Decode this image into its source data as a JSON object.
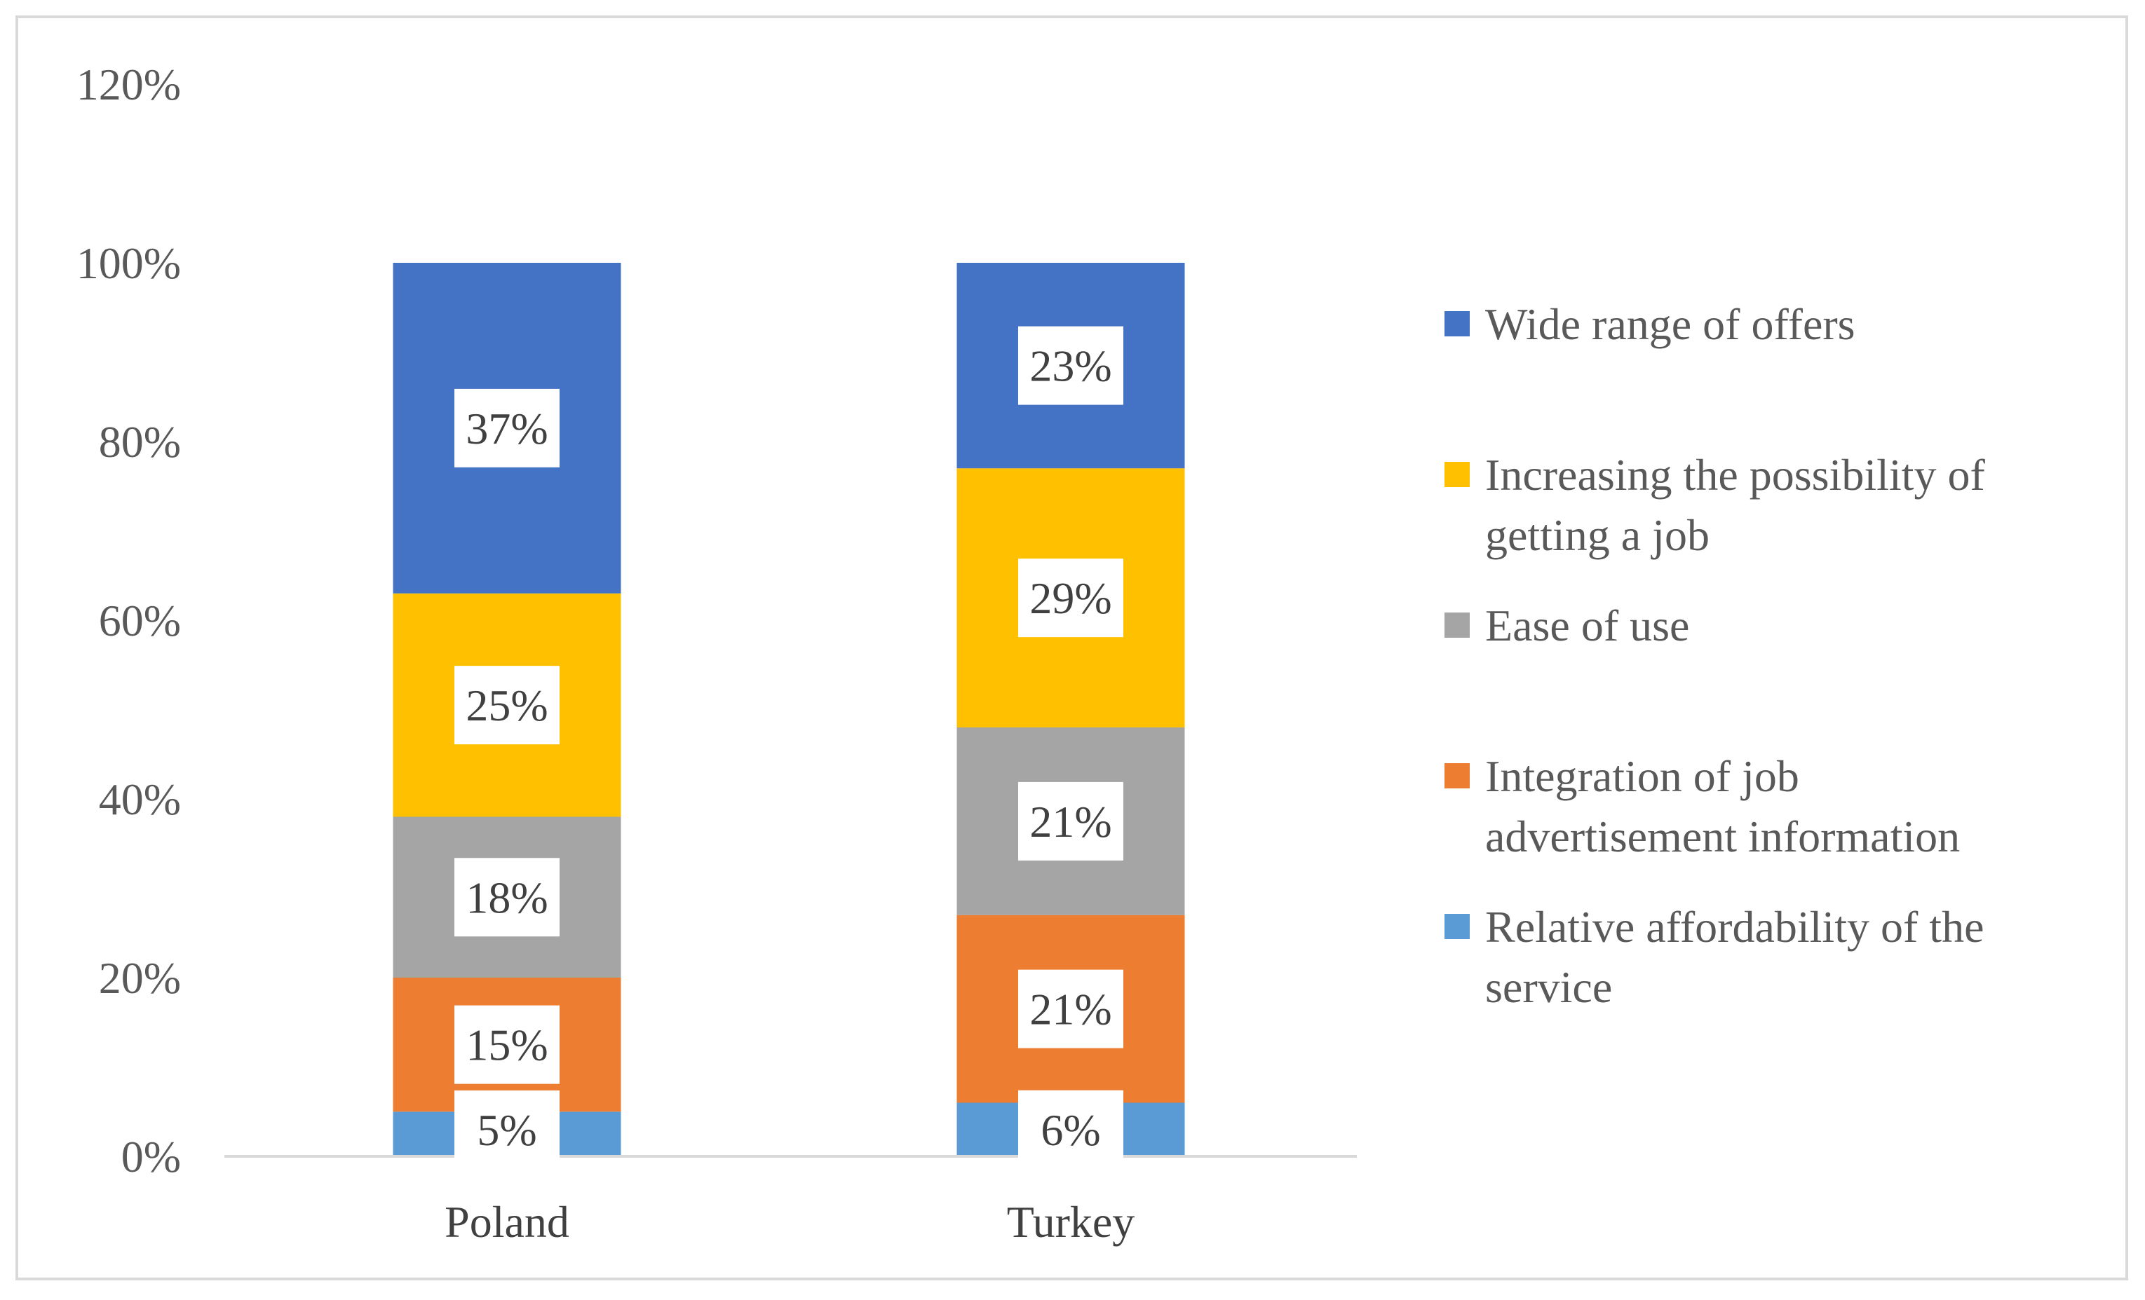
{
  "chart_data": {
    "type": "bar",
    "stacked": true,
    "title": "",
    "xlabel": "",
    "ylabel": "",
    "ylim": [
      0,
      1.2
    ],
    "yticks": [
      0,
      0.2,
      0.4,
      0.6,
      0.8,
      1.0,
      1.2
    ],
    "ytick_labels": [
      "0%",
      "20%",
      "40%",
      "60%",
      "80%",
      "100%",
      "120%"
    ],
    "categories": [
      "Poland",
      "Turkey"
    ],
    "series": [
      {
        "name": "Relative affordability of the service",
        "color": "#5b9bd5",
        "values": [
          0.05,
          0.06
        ],
        "labels": [
          "5%",
          "6%"
        ]
      },
      {
        "name": "Integration of job advertisement information",
        "color": "#ed7d31",
        "values": [
          0.15,
          0.21
        ],
        "labels": [
          "15%",
          "21%"
        ]
      },
      {
        "name": "Ease of use",
        "color": "#a5a5a5",
        "values": [
          0.18,
          0.21
        ],
        "labels": [
          "18%",
          "21%"
        ]
      },
      {
        "name": "Increasing the possibility of getting a job",
        "color": "#ffc000",
        "values": [
          0.25,
          0.29
        ],
        "labels": [
          "25%",
          "29%"
        ]
      },
      {
        "name": "Wide range of offers",
        "color": "#4472c4",
        "values": [
          0.37,
          0.23
        ],
        "labels": [
          "37%",
          "23%"
        ]
      }
    ],
    "legend": {
      "position": "right",
      "entries": [
        {
          "series": "Wide range of offers",
          "lines": [
            "Wide range of offers"
          ]
        },
        {
          "series": "Increasing the possibility of getting a job",
          "lines": [
            "Increasing the possibility of",
            "getting a job"
          ]
        },
        {
          "series": "Ease of use",
          "lines": [
            "Ease of use"
          ]
        },
        {
          "series": "Integration of job advertisement information",
          "lines": [
            "Integration of job",
            "advertisement information"
          ]
        },
        {
          "series": "Relative affordability of the service",
          "lines": [
            "Relative affordability of the",
            "service"
          ]
        }
      ]
    },
    "grid": false
  }
}
